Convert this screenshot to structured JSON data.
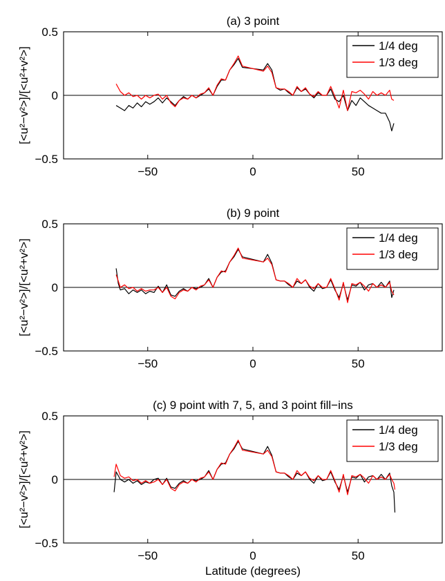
{
  "chart_data": [
    {
      "type": "line",
      "title": "(a) 3 point",
      "xlabel": "",
      "ylabel": "[<u²−v²>]/[<u²+v²>]",
      "xlim": [
        -90,
        90
      ],
      "ylim": [
        -0.5,
        0.5
      ],
      "xticks": [
        -50,
        0,
        50
      ],
      "yticks": [
        -0.5,
        0,
        0.5
      ],
      "xtick_labels": [
        "−50",
        "0",
        "50"
      ],
      "ytick_labels": [
        "−0.5",
        "0",
        "0.5"
      ],
      "zero_line": true,
      "grid": false,
      "legend_position": "top-right",
      "series": [
        {
          "name": "1/4 deg",
          "color": "#000000",
          "x": [
            -65,
            -63,
            -61,
            -59,
            -57,
            -55,
            -53,
            -51,
            -49,
            -47,
            -45,
            -43,
            -41,
            -39,
            -37,
            -35,
            -33,
            -31,
            -29,
            -27,
            -25,
            -23,
            -21,
            -19,
            -17,
            -15,
            -13,
            -11,
            -9,
            -7,
            -5,
            5,
            7,
            9,
            11,
            13,
            15,
            17,
            19,
            21,
            23,
            25,
            27,
            29,
            31,
            33,
            35,
            37,
            39,
            41,
            43,
            45,
            47,
            49,
            51,
            53,
            55,
            57,
            59,
            61,
            63,
            65,
            66,
            67
          ],
          "y": [
            -0.08,
            -0.1,
            -0.12,
            -0.08,
            -0.1,
            -0.06,
            -0.09,
            -0.05,
            -0.07,
            -0.05,
            -0.02,
            -0.06,
            -0.02,
            -0.05,
            -0.08,
            -0.04,
            -0.01,
            -0.03,
            0.0,
            -0.02,
            0.0,
            0.02,
            0.05,
            0.0,
            0.07,
            0.12,
            0.12,
            0.2,
            0.24,
            0.29,
            0.22,
            0.2,
            0.25,
            0.2,
            0.06,
            0.04,
            0.05,
            0.02,
            0.0,
            0.06,
            0.03,
            0.05,
            0.01,
            -0.02,
            0.02,
            0.0,
            0.0,
            0.05,
            -0.03,
            -0.05,
            0.0,
            -0.12,
            -0.04,
            -0.08,
            -0.02,
            -0.05,
            -0.08,
            -0.1,
            -0.12,
            -0.14,
            -0.14,
            -0.21,
            -0.28,
            -0.22
          ]
        },
        {
          "name": "1/3 deg",
          "color": "#ff0000",
          "x": [
            -65,
            -63,
            -61,
            -59,
            -57,
            -55,
            -53,
            -51,
            -49,
            -47,
            -45,
            -43,
            -41,
            -39,
            -37,
            -35,
            -33,
            -31,
            -29,
            -27,
            -25,
            -23,
            -21,
            -19,
            -17,
            -15,
            -13,
            -11,
            -9,
            -7,
            -5,
            5,
            7,
            9,
            11,
            13,
            15,
            17,
            19,
            21,
            23,
            25,
            27,
            29,
            31,
            33,
            35,
            37,
            39,
            41,
            43,
            45,
            47,
            49,
            51,
            53,
            55,
            57,
            59,
            61,
            63,
            65,
            66,
            67
          ],
          "y": [
            0.09,
            0.03,
            0.0,
            0.02,
            -0.01,
            0.0,
            -0.03,
            0.0,
            -0.02,
            0.0,
            0.01,
            -0.03,
            0.0,
            -0.06,
            -0.09,
            -0.04,
            -0.02,
            -0.03,
            0.0,
            -0.02,
            0.01,
            0.02,
            0.06,
            0.0,
            0.08,
            0.13,
            0.12,
            0.2,
            0.25,
            0.31,
            0.23,
            0.19,
            0.23,
            0.18,
            0.06,
            0.05,
            0.05,
            0.03,
            0.0,
            0.07,
            0.03,
            0.06,
            0.01,
            -0.01,
            0.03,
            0.0,
            0.0,
            0.07,
            -0.01,
            -0.1,
            0.04,
            -0.12,
            0.03,
            0.02,
            0.04,
            0.01,
            -0.03,
            0.03,
            0.0,
            0.02,
            0.0,
            0.04,
            -0.03,
            -0.04
          ]
        }
      ]
    },
    {
      "type": "line",
      "title": "(b) 9 point",
      "xlabel": "",
      "ylabel": "[<u²−v²>]/[<u²+v²>]",
      "xlim": [
        -90,
        90
      ],
      "ylim": [
        -0.5,
        0.5
      ],
      "xticks": [
        -50,
        0,
        50
      ],
      "yticks": [
        -0.5,
        0,
        0.5
      ],
      "xtick_labels": [
        "−50",
        "0",
        "50"
      ],
      "ytick_labels": [
        "−0.5",
        "0",
        "0.5"
      ],
      "zero_line": true,
      "grid": false,
      "legend_position": "top-right",
      "series": [
        {
          "name": "1/4 deg",
          "color": "#000000",
          "x": [
            -65,
            -64,
            -63,
            -61,
            -59,
            -57,
            -55,
            -53,
            -51,
            -49,
            -47,
            -45,
            -43,
            -41,
            -39,
            -37,
            -35,
            -33,
            -31,
            -29,
            -27,
            -25,
            -23,
            -21,
            -19,
            -17,
            -15,
            -13,
            -11,
            -9,
            -7,
            -5,
            5,
            7,
            9,
            11,
            13,
            15,
            17,
            19,
            21,
            23,
            25,
            27,
            29,
            31,
            33,
            35,
            37,
            39,
            41,
            43,
            45,
            47,
            49,
            51,
            53,
            55,
            57,
            59,
            61,
            63,
            65,
            66,
            67
          ],
          "y": [
            0.15,
            0.03,
            -0.02,
            -0.01,
            -0.05,
            -0.02,
            -0.04,
            -0.02,
            -0.05,
            -0.03,
            -0.04,
            0.01,
            -0.04,
            0.02,
            -0.06,
            -0.07,
            -0.03,
            -0.01,
            -0.03,
            0.0,
            -0.01,
            0.0,
            0.02,
            0.07,
            0.0,
            0.08,
            0.12,
            0.13,
            0.2,
            0.24,
            0.3,
            0.24,
            0.2,
            0.26,
            0.19,
            0.06,
            0.05,
            0.05,
            0.02,
            0.0,
            0.05,
            0.03,
            0.06,
            0.0,
            -0.03,
            0.03,
            -0.01,
            0.0,
            0.06,
            -0.02,
            -0.08,
            0.03,
            -0.1,
            0.02,
            0.01,
            0.04,
            -0.02,
            0.02,
            0.03,
            0.0,
            0.04,
            0.0,
            0.05,
            -0.08,
            -0.02
          ]
        },
        {
          "name": "1/3 deg",
          "color": "#ff0000",
          "x": [
            -65,
            -64,
            -63,
            -61,
            -59,
            -57,
            -55,
            -53,
            -51,
            -49,
            -47,
            -45,
            -43,
            -41,
            -39,
            -37,
            -35,
            -33,
            -31,
            -29,
            -27,
            -25,
            -23,
            -21,
            -19,
            -17,
            -15,
            -13,
            -11,
            -9,
            -7,
            -5,
            5,
            7,
            9,
            11,
            13,
            15,
            17,
            19,
            21,
            23,
            25,
            27,
            29,
            31,
            33,
            35,
            37,
            39,
            41,
            43,
            45,
            47,
            49,
            51,
            53,
            55,
            57,
            59,
            61,
            63,
            65,
            66,
            67
          ],
          "y": [
            0.1,
            0.05,
            0.0,
            0.02,
            -0.01,
            0.0,
            -0.03,
            -0.01,
            -0.03,
            -0.02,
            -0.02,
            0.0,
            -0.04,
            0.0,
            -0.07,
            -0.09,
            -0.04,
            -0.02,
            -0.03,
            0.0,
            -0.02,
            0.01,
            0.02,
            0.06,
            0.0,
            0.08,
            0.13,
            0.12,
            0.2,
            0.25,
            0.31,
            0.23,
            0.2,
            0.23,
            0.18,
            0.06,
            0.05,
            0.05,
            0.03,
            0.0,
            0.07,
            0.03,
            0.06,
            0.01,
            -0.01,
            0.03,
            0.0,
            0.0,
            0.07,
            -0.01,
            -0.1,
            0.04,
            -0.12,
            0.03,
            0.02,
            0.04,
            0.01,
            -0.03,
            0.03,
            0.0,
            0.02,
            0.0,
            0.04,
            -0.03,
            -0.06
          ]
        }
      ]
    },
    {
      "type": "line",
      "title": "(c) 9 point with 7, 5, and 3 point fill−ins",
      "xlabel": "Latitude (degrees)",
      "ylabel": "[<u²−v²>]/[<u²+v²>]",
      "xlim": [
        -90,
        90
      ],
      "ylim": [
        -0.5,
        0.5
      ],
      "xticks": [
        -50,
        0,
        50
      ],
      "yticks": [
        -0.5,
        0,
        0.5
      ],
      "xtick_labels": [
        "−50",
        "0",
        "50"
      ],
      "ytick_labels": [
        "−0.5",
        "0",
        "0.5"
      ],
      "zero_line": true,
      "grid": false,
      "legend_position": "top-right",
      "series": [
        {
          "name": "1/4 deg",
          "color": "#000000",
          "x": [
            -66,
            -65,
            -63,
            -61,
            -59,
            -57,
            -55,
            -53,
            -51,
            -49,
            -47,
            -45,
            -43,
            -41,
            -39,
            -37,
            -35,
            -33,
            -31,
            -29,
            -27,
            -25,
            -23,
            -21,
            -19,
            -17,
            -15,
            -13,
            -11,
            -9,
            -7,
            -5,
            5,
            7,
            9,
            11,
            13,
            15,
            17,
            19,
            21,
            23,
            25,
            27,
            29,
            31,
            33,
            35,
            37,
            39,
            41,
            43,
            45,
            47,
            49,
            51,
            53,
            55,
            57,
            59,
            61,
            63,
            65,
            66,
            67,
            67.5
          ],
          "y": [
            -0.1,
            0.06,
            0.0,
            -0.02,
            0.0,
            -0.03,
            -0.01,
            -0.04,
            -0.02,
            -0.03,
            0.0,
            0.01,
            -0.04,
            0.01,
            -0.06,
            -0.07,
            -0.03,
            -0.01,
            -0.03,
            0.0,
            -0.01,
            0.0,
            0.02,
            0.07,
            0.0,
            0.08,
            0.12,
            0.13,
            0.2,
            0.24,
            0.3,
            0.24,
            0.2,
            0.26,
            0.19,
            0.06,
            0.05,
            0.05,
            0.02,
            0.0,
            0.05,
            0.03,
            0.06,
            0.0,
            -0.03,
            0.03,
            -0.01,
            0.0,
            0.06,
            -0.02,
            -0.08,
            0.03,
            -0.1,
            0.02,
            0.01,
            0.04,
            -0.02,
            0.02,
            0.03,
            0.0,
            0.04,
            0.0,
            0.05,
            -0.05,
            -0.1,
            -0.26
          ]
        },
        {
          "name": "1/3 deg",
          "color": "#ff0000",
          "x": [
            -66,
            -65,
            -63,
            -61,
            -59,
            -57,
            -55,
            -53,
            -51,
            -49,
            -47,
            -45,
            -43,
            -41,
            -39,
            -37,
            -35,
            -33,
            -31,
            -29,
            -27,
            -25,
            -23,
            -21,
            -19,
            -17,
            -15,
            -13,
            -11,
            -9,
            -7,
            -5,
            5,
            7,
            9,
            11,
            13,
            15,
            17,
            19,
            21,
            23,
            25,
            27,
            29,
            31,
            33,
            35,
            37,
            39,
            41,
            43,
            45,
            47,
            49,
            51,
            53,
            55,
            57,
            59,
            61,
            63,
            65,
            66,
            67,
            67.5
          ],
          "y": [
            0.02,
            0.12,
            0.03,
            0.01,
            0.02,
            -0.01,
            0.0,
            -0.03,
            -0.01,
            -0.03,
            -0.02,
            0.0,
            -0.04,
            0.0,
            -0.07,
            -0.09,
            -0.04,
            -0.02,
            -0.03,
            0.0,
            -0.02,
            0.01,
            0.02,
            0.06,
            0.0,
            0.08,
            0.13,
            0.12,
            0.2,
            0.25,
            0.31,
            0.23,
            0.2,
            0.23,
            0.18,
            0.06,
            0.05,
            0.05,
            0.03,
            0.0,
            0.07,
            0.03,
            0.06,
            0.01,
            -0.01,
            0.03,
            0.0,
            0.0,
            0.07,
            -0.01,
            -0.1,
            0.04,
            -0.12,
            0.03,
            0.02,
            0.04,
            0.01,
            -0.03,
            0.03,
            0.0,
            0.02,
            0.0,
            0.04,
            0.0,
            -0.03,
            -0.08
          ]
        }
      ]
    }
  ]
}
